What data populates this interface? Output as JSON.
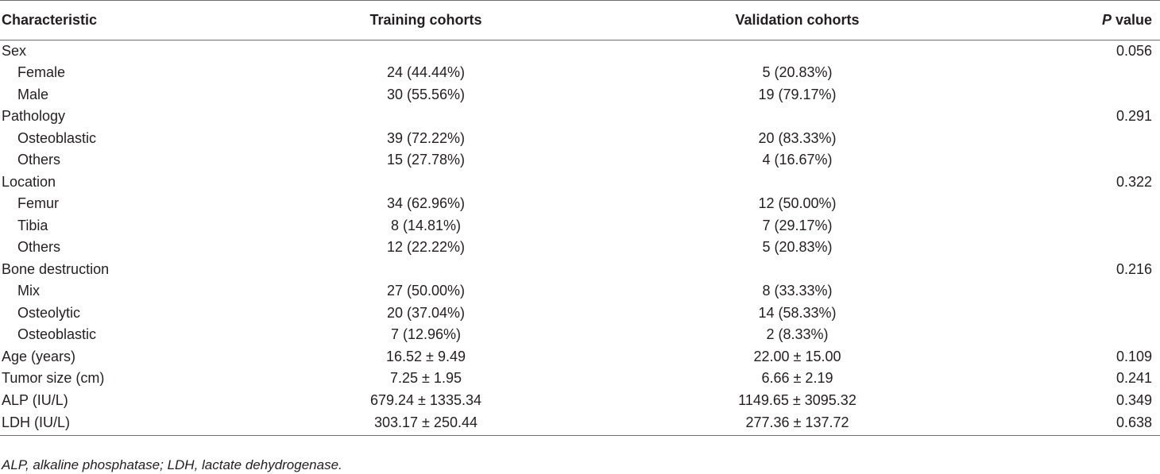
{
  "table": {
    "headers": {
      "characteristic": "Characteristic",
      "training": "Training cohorts",
      "validation": "Validation cohorts",
      "p_italic": "P",
      "p_rest": " value"
    },
    "rows": [
      {
        "label": "Sex",
        "training": "",
        "validation": "",
        "p": "0.056"
      },
      {
        "label": "Female",
        "training": "24 (44.44%)",
        "validation": "5 (20.83%)",
        "p": ""
      },
      {
        "label": "Male",
        "training": "30 (55.56%)",
        "validation": "19 (79.17%)",
        "p": ""
      },
      {
        "label": "Pathology",
        "training": "",
        "validation": "",
        "p": "0.291"
      },
      {
        "label": "Osteoblastic",
        "training": "39 (72.22%)",
        "validation": "20 (83.33%)",
        "p": ""
      },
      {
        "label": "Others",
        "training": "15 (27.78%)",
        "validation": "4 (16.67%)",
        "p": ""
      },
      {
        "label": "Location",
        "training": "",
        "validation": "",
        "p": "0.322"
      },
      {
        "label": "Femur",
        "training": "34 (62.96%)",
        "validation": "12 (50.00%)",
        "p": ""
      },
      {
        "label": "Tibia",
        "training": "8 (14.81%)",
        "validation": "7 (29.17%)",
        "p": ""
      },
      {
        "label": "Others",
        "training": "12 (22.22%)",
        "validation": "5 (20.83%)",
        "p": ""
      },
      {
        "label": "Bone destruction",
        "training": "",
        "validation": "",
        "p": "0.216"
      },
      {
        "label": "Mix",
        "training": "27 (50.00%)",
        "validation": "8 (33.33%)",
        "p": ""
      },
      {
        "label": "Osteolytic",
        "training": "20 (37.04%)",
        "validation": "14 (58.33%)",
        "p": ""
      },
      {
        "label": "Osteoblastic",
        "training": "7 (12.96%)",
        "validation": "2 (8.33%)",
        "p": ""
      },
      {
        "label": "Age (years)",
        "training": "16.52 ± 9.49",
        "validation": "22.00 ± 15.00",
        "p": "0.109"
      },
      {
        "label": "Tumor size (cm)",
        "training": "7.25 ± 1.95",
        "validation": "6.66 ± 2.19",
        "p": "0.241"
      },
      {
        "label": "ALP (IU/L)",
        "training": "679.24 ± 1335.34",
        "validation": "1149.65 ± 3095.32",
        "p": "0.349"
      },
      {
        "label": "LDH (IU/L)",
        "training": "303.17 ± 250.44",
        "validation": "277.36 ± 137.72",
        "p": "0.638"
      }
    ]
  },
  "footnote": "ALP, alkaline phosphatase; LDH, lactate dehydrogenase.",
  "colors": {
    "text": "#231f20",
    "rule": "#6d6e71"
  }
}
